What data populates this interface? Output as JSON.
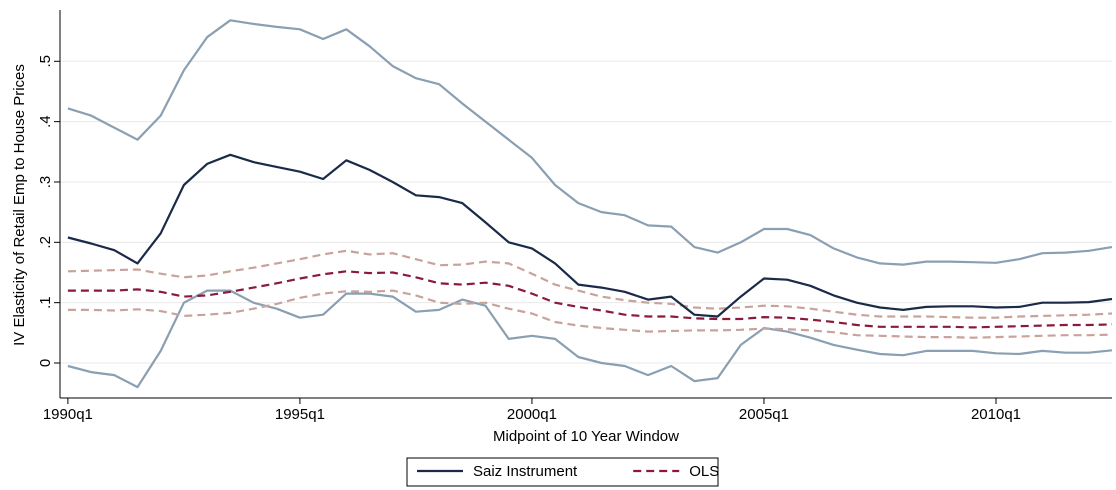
{
  "chart_data": {
    "type": "line",
    "xlabel": "Midpoint of 10 Year Window",
    "ylabel": "IV Elasticity of Retail Emp to House Prices",
    "x": [
      1990,
      1990.5,
      1991,
      1991.5,
      1992,
      1992.5,
      1993,
      1993.5,
      1994,
      1994.5,
      1995,
      1995.5,
      1996,
      1996.5,
      1997,
      1997.5,
      1998,
      1998.5,
      1999,
      1999.5,
      2000,
      2000.5,
      2001,
      2001.5,
      2002,
      2002.5,
      2003,
      2003.5,
      2004,
      2004.5,
      2005,
      2005.5,
      2006,
      2006.5,
      2007,
      2007.5,
      2008,
      2008.5,
      2009,
      2009.5,
      2010,
      2010.5,
      2011,
      2011.5,
      2012,
      2012.5
    ],
    "xlim": [
      1989.83,
      2012.5
    ],
    "xticks": [
      {
        "value": 1990,
        "label": "1990q1"
      },
      {
        "value": 1995,
        "label": "1995q1"
      },
      {
        "value": 2000,
        "label": "2000q1"
      },
      {
        "value": 2005,
        "label": "2005q1"
      },
      {
        "value": 2010,
        "label": "2010q1"
      }
    ],
    "ylim": [
      -0.058,
      0.585
    ],
    "yticks": [
      0,
      {
        "value": 0.1,
        "label": ".1"
      },
      {
        "value": 0.2,
        "label": ".2"
      },
      {
        "value": 0.3,
        "label": ".3"
      },
      {
        "value": 0.4,
        "label": ".4"
      },
      {
        "value": 0.5,
        "label": ".5"
      }
    ],
    "grid": true,
    "legend": "bottom",
    "series": [
      {
        "color": "#8a9fb2",
        "dashed": false,
        "values": [
          0.422,
          0.41,
          0.39,
          0.37,
          0.41,
          0.485,
          0.54,
          0.568,
          0.562,
          0.557,
          0.553,
          0.537,
          0.553,
          0.525,
          0.492,
          0.472,
          0.462,
          0.43,
          0.4,
          0.37,
          0.34,
          0.295,
          0.265,
          0.25,
          0.245,
          0.228,
          0.226,
          0.192,
          0.183,
          0.2,
          0.222,
          0.222,
          0.212,
          0.19,
          0.175,
          0.165,
          0.163,
          0.168,
          0.168,
          0.167,
          0.166,
          0.172,
          0.182,
          0.183,
          0.186,
          0.192
        ]
      },
      {
        "color": "#8a9fb2",
        "dashed": false,
        "values": [
          -0.005,
          -0.015,
          -0.02,
          -0.04,
          0.02,
          0.1,
          0.12,
          0.12,
          0.1,
          0.09,
          0.075,
          0.08,
          0.115,
          0.115,
          0.11,
          0.085,
          0.088,
          0.105,
          0.095,
          0.04,
          0.045,
          0.04,
          0.01,
          0,
          -0.005,
          -0.02,
          -0.005,
          -0.03,
          -0.025,
          0.03,
          0.058,
          0.052,
          0.042,
          0.03,
          0.022,
          0.015,
          0.013,
          0.02,
          0.02,
          0.02,
          0.016,
          0.015,
          0.02,
          0.017,
          0.017,
          0.021
        ]
      },
      {
        "color": "#c8a39b",
        "dashed": true,
        "values": [
          0.152,
          0.153,
          0.154,
          0.155,
          0.148,
          0.142,
          0.145,
          0.152,
          0.158,
          0.165,
          0.172,
          0.18,
          0.186,
          0.18,
          0.182,
          0.172,
          0.162,
          0.163,
          0.168,
          0.165,
          0.148,
          0.13,
          0.12,
          0.11,
          0.104,
          0.1,
          0.098,
          0.092,
          0.09,
          0.092,
          0.095,
          0.094,
          0.09,
          0.085,
          0.08,
          0.077,
          0.077,
          0.077,
          0.076,
          0.075,
          0.075,
          0.077,
          0.078,
          0.079,
          0.08,
          0.082
        ]
      },
      {
        "color": "#c8a39b",
        "dashed": true,
        "values": [
          0.088,
          0.088,
          0.087,
          0.089,
          0.086,
          0.078,
          0.08,
          0.083,
          0.09,
          0.098,
          0.108,
          0.115,
          0.119,
          0.118,
          0.12,
          0.112,
          0.1,
          0.098,
          0.1,
          0.09,
          0.082,
          0.068,
          0.062,
          0.058,
          0.055,
          0.052,
          0.053,
          0.054,
          0.054,
          0.055,
          0.057,
          0.056,
          0.054,
          0.051,
          0.046,
          0.045,
          0.044,
          0.043,
          0.043,
          0.042,
          0.043,
          0.044,
          0.045,
          0.046,
          0.046,
          0.047
        ]
      },
      {
        "name": "Saiz Instrument",
        "color": "#1a2a48",
        "dashed": false,
        "values": [
          0.208,
          0.198,
          0.187,
          0.165,
          0.215,
          0.295,
          0.33,
          0.345,
          0.333,
          0.325,
          0.317,
          0.305,
          0.336,
          0.32,
          0.3,
          0.278,
          0.275,
          0.265,
          0.233,
          0.2,
          0.19,
          0.165,
          0.13,
          0.125,
          0.118,
          0.105,
          0.11,
          0.08,
          0.077,
          0.11,
          0.14,
          0.138,
          0.128,
          0.112,
          0.1,
          0.092,
          0.088,
          0.093,
          0.094,
          0.094,
          0.092,
          0.093,
          0.1,
          0.1,
          0.101,
          0.106
        ]
      },
      {
        "name": "OLS",
        "color": "#8b1a3a",
        "dashed": true,
        "values": [
          0.12,
          0.12,
          0.12,
          0.122,
          0.118,
          0.11,
          0.112,
          0.118,
          0.125,
          0.132,
          0.14,
          0.147,
          0.152,
          0.149,
          0.15,
          0.142,
          0.132,
          0.13,
          0.133,
          0.128,
          0.115,
          0.1,
          0.093,
          0.087,
          0.08,
          0.077,
          0.077,
          0.074,
          0.073,
          0.073,
          0.076,
          0.075,
          0.072,
          0.068,
          0.063,
          0.06,
          0.06,
          0.06,
          0.06,
          0.059,
          0.06,
          0.061,
          0.062,
          0.063,
          0.063,
          0.064
        ]
      }
    ]
  }
}
